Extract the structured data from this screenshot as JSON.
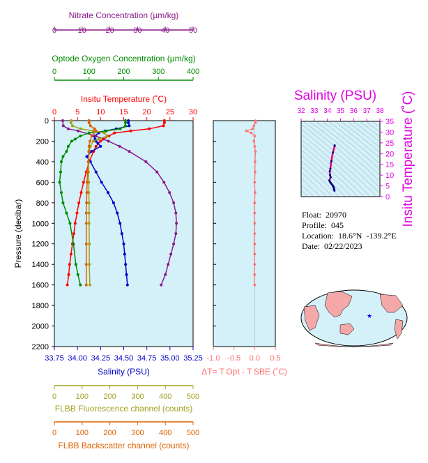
{
  "info": {
    "float_label": "Float:",
    "float_value": "20970",
    "profile_label": "Profile:",
    "profile_value": "045",
    "location_label": "Location:",
    "location_value": "18.6°N  -139.2°E",
    "date_label": "Date:",
    "date_value": "02/22/2023"
  },
  "colors": {
    "nitrate": "#8b1a8b",
    "oxygen": "#008b00",
    "temperature": "#ff0000",
    "salinity": "#0000cd",
    "fluorescence": "#a0a020",
    "backscatter": "#e06000",
    "delta_t": "#ff7070",
    "ts_title": "#e000e0",
    "plot_bg": "#d4f0f8",
    "land": "#f4a8a8"
  },
  "chart_data": [
    {
      "type": "line",
      "name": "main-profile",
      "ylabel": "Pressure (decibar)",
      "ylim": [
        2200,
        0
      ],
      "yticks": [
        0,
        200,
        400,
        600,
        800,
        1000,
        1200,
        1400,
        1600,
        1800,
        2000,
        2200
      ],
      "axes": {
        "nitrate": {
          "label": "Nitrate Concentration (µm/kg)",
          "range": [
            0,
            50
          ],
          "ticks": [
            0,
            10,
            20,
            30,
            40,
            50
          ]
        },
        "oxygen": {
          "label": "Optode Oxygen Concentration (µm/kg)",
          "range": [
            0,
            400
          ],
          "ticks": [
            0,
            100,
            200,
            300,
            400
          ]
        },
        "temperature": {
          "label": "Insitu Temperature (˚C)",
          "range": [
            0,
            30
          ],
          "ticks": [
            0,
            5,
            10,
            15,
            20,
            25,
            30
          ]
        },
        "salinity": {
          "label": "Salinity (PSU)",
          "range": [
            33.75,
            35.25
          ],
          "ticks": [
            "33.75",
            "34.00",
            "34.25",
            "34.50",
            "34.75",
            "35.00",
            "35.25"
          ]
        },
        "fluorescence": {
          "label": "FLBB Fluorescence channel (counts)",
          "range": [
            0,
            500
          ],
          "ticks": [
            0,
            100,
            200,
            300,
            400,
            500
          ]
        },
        "backscatter": {
          "label": "FLBB Backscatter channel (counts)",
          "range": [
            0,
            500
          ],
          "ticks": [
            0,
            100,
            200,
            300,
            400,
            500
          ]
        }
      },
      "series": [
        {
          "axis": "temperature",
          "p": [
            0,
            20,
            50,
            80,
            100,
            120,
            150,
            180,
            200,
            250,
            300,
            400,
            500,
            600,
            700,
            800,
            900,
            1000,
            1100,
            1200,
            1300,
            1400,
            1500,
            1600
          ],
          "v": [
            23.8,
            23.8,
            23.6,
            20.5,
            16.5,
            13.0,
            11.8,
            10.6,
            10.0,
            9.0,
            8.5,
            7.5,
            6.9,
            6.3,
            5.8,
            5.3,
            4.9,
            4.5,
            4.2,
            3.9,
            3.6,
            3.3,
            3.1,
            2.8
          ]
        },
        {
          "axis": "salinity",
          "p": [
            0,
            20,
            50,
            80,
            100,
            120,
            150,
            180,
            200,
            220,
            250,
            300,
            350,
            400,
            500,
            600,
            700,
            800,
            900,
            1000,
            1100,
            1200,
            1300,
            1400,
            1500,
            1600
          ],
          "v": [
            34.55,
            34.55,
            34.56,
            34.42,
            34.3,
            34.23,
            34.18,
            34.19,
            34.2,
            34.22,
            34.25,
            34.15,
            34.1,
            34.14,
            34.2,
            34.26,
            34.33,
            34.39,
            34.43,
            34.46,
            34.48,
            34.5,
            34.51,
            34.52,
            34.53,
            34.54
          ]
        },
        {
          "axis": "nitrate",
          "p": [
            0,
            50,
            80,
            100,
            150,
            200,
            250,
            300,
            400,
            500,
            600,
            700,
            800,
            900,
            1000,
            1100,
            1200,
            1300,
            1400,
            1500,
            1600
          ],
          "v": [
            3.0,
            3.2,
            5.0,
            8.5,
            15.0,
            19.5,
            23.5,
            27.0,
            33.0,
            37.0,
            39.5,
            41.5,
            43.0,
            43.8,
            44.0,
            43.8,
            43.0,
            42.0,
            41.0,
            40.0,
            38.5
          ]
        },
        {
          "axis": "oxygen",
          "p": [
            0,
            20,
            50,
            80,
            100,
            120,
            150,
            180,
            200,
            250,
            300,
            350,
            400,
            500,
            600,
            700,
            800,
            900,
            1000,
            1200,
            1400,
            1500,
            1600
          ],
          "v": [
            205,
            205,
            205,
            190,
            150,
            100,
            75,
            60,
            50,
            40,
            35,
            25,
            20,
            18,
            15,
            20,
            25,
            35,
            45,
            55,
            62,
            68,
            75
          ]
        },
        {
          "axis": "fluorescence",
          "p": [
            0,
            20,
            50,
            80,
            100,
            120,
            150,
            180,
            200,
            250,
            300,
            400,
            500,
            600,
            700,
            800,
            900,
            1000,
            1200,
            1400,
            1600
          ],
          "v": [
            60,
            60,
            65,
            95,
            140,
            180,
            190,
            160,
            140,
            130,
            125,
            123,
            123,
            124,
            124,
            125,
            125,
            125,
            126,
            126,
            128
          ]
        },
        {
          "axis": "backscatter",
          "p": [
            0,
            20,
            50,
            80,
            100,
            150,
            200,
            250,
            300,
            400,
            500,
            600,
            700,
            800,
            900,
            1000,
            1200,
            1400,
            1600
          ],
          "v": [
            125,
            125,
            130,
            145,
            150,
            135,
            128,
            125,
            124,
            122,
            120,
            118,
            117,
            116,
            115,
            115,
            115,
            115,
            115
          ]
        }
      ]
    },
    {
      "type": "line",
      "name": "delta-t",
      "xlabel": "ΔT= T Opt - T SBE (˚C)",
      "xlim": [
        -1.0,
        0.5
      ],
      "xticks": [
        "-1.0",
        "-0.5",
        "0.0",
        "0.5"
      ],
      "ylim": [
        2200,
        0
      ],
      "series": [
        {
          "p": [
            0,
            20,
            50,
            80,
            100,
            120,
            150,
            200,
            250,
            300,
            400,
            500,
            600,
            700,
            800,
            900,
            1000,
            1100,
            1200,
            1300,
            1400,
            1500,
            1600
          ],
          "v": [
            0.02,
            0.02,
            -0.02,
            -0.05,
            -0.2,
            -0.08,
            0.0,
            -0.02,
            0.0,
            0.02,
            0.01,
            0.01,
            0.0,
            0.01,
            0.0,
            0.0,
            0.0,
            0.0,
            0.0,
            0.0,
            0.0,
            0.0,
            0.0
          ]
        }
      ]
    },
    {
      "type": "scatter",
      "name": "ts-diagram",
      "title": "Salinity (PSU)",
      "ylabel": "Insitu Temperature (˚C)",
      "xlim": [
        32,
        38
      ],
      "xticks": [
        "32",
        "33",
        "34",
        "35",
        "36",
        "37",
        "38"
      ],
      "ylim": [
        0,
        35
      ],
      "yticks": [
        "0",
        "5",
        "10",
        "15",
        "20",
        "25",
        "30",
        "35"
      ],
      "series": [
        {
          "s": [
            34.55,
            34.56,
            34.42,
            34.3,
            34.23,
            34.18,
            34.2,
            34.25,
            34.14,
            34.2,
            34.26,
            34.33,
            34.39,
            34.43,
            34.46,
            34.48,
            34.5,
            34.52,
            34.54
          ],
          "t": [
            23.8,
            23.6,
            20.5,
            16.5,
            13.0,
            11.8,
            10.0,
            9.0,
            7.5,
            6.9,
            6.3,
            5.8,
            5.3,
            4.9,
            4.5,
            4.2,
            3.9,
            3.3,
            2.8
          ]
        }
      ]
    }
  ],
  "map": {
    "float_marker": "★"
  }
}
